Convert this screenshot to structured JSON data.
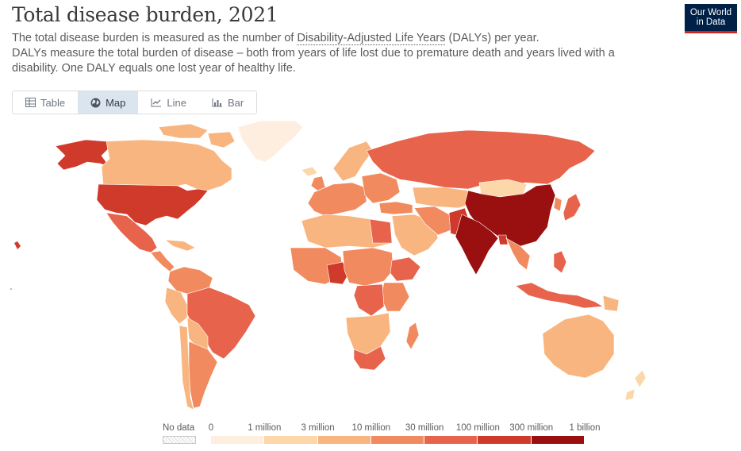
{
  "header": {
    "title": "Total disease burden, 2021",
    "subtitle_lead": "The total disease burden is measured as the number of ",
    "subtitle_link": "Disability-Adjusted Life Years",
    "subtitle_mid": " (DALYs) per year.",
    "subtitle_rest": "DALYs measure the total burden of disease – both from years of life lost due to premature death and years lived with a disability. One DALY equals one lost year of healthy life.",
    "logo_line1": "Our World",
    "logo_line2": "in Data"
  },
  "tabs": [
    {
      "label": "Table",
      "icon": "table-icon",
      "active": false
    },
    {
      "label": "Map",
      "icon": "globe-icon",
      "active": true
    },
    {
      "label": "Line",
      "icon": "line-chart-icon",
      "active": false
    },
    {
      "label": "Bar",
      "icon": "bar-chart-icon",
      "active": false
    }
  ],
  "legend": {
    "no_data_label": "No data",
    "ticks": [
      "0",
      "1 million",
      "3 million",
      "10 million",
      "30 million",
      "100 million",
      "300 million",
      "1 billion"
    ],
    "colors": [
      "#fdeee0",
      "#fbd7aa",
      "#f8b57f",
      "#f18a5e",
      "#e7634b",
      "#cf3a2b",
      "#9a0f0f"
    ]
  },
  "map_colors": {
    "very_low": "#fdeee0",
    "low": "#fbd7aa",
    "medium_low": "#f8b57f",
    "medium": "#f18a5e",
    "high": "#e7634b",
    "very_high": "#cf3a2b",
    "extreme": "#9a0f0f",
    "border": "#ffffff"
  }
}
